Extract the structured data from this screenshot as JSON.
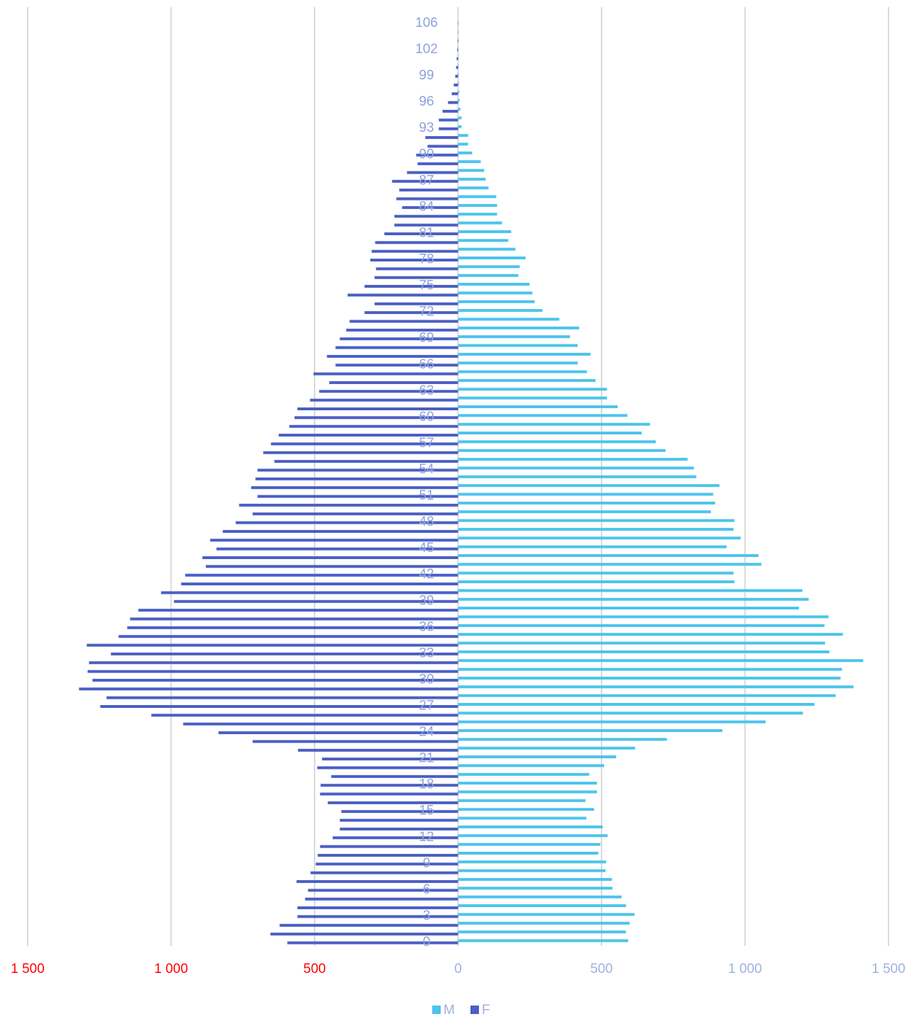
{
  "chart_data": {
    "type": "population-pyramid",
    "categories": [
      "0",
      null,
      null,
      "3",
      null,
      null,
      "6",
      null,
      null,
      "9",
      null,
      null,
      "12",
      null,
      null,
      "15",
      null,
      null,
      "18",
      null,
      null,
      "21",
      null,
      null,
      "24",
      null,
      null,
      "27",
      null,
      null,
      "30",
      null,
      null,
      "33",
      null,
      null,
      "36",
      null,
      null,
      "39",
      null,
      null,
      "42",
      null,
      null,
      "45",
      null,
      null,
      "48",
      null,
      null,
      "51",
      null,
      null,
      "54",
      null,
      null,
      "57",
      null,
      null,
      "60",
      null,
      null,
      "63",
      null,
      null,
      "66",
      null,
      null,
      "69",
      null,
      null,
      "72",
      null,
      null,
      "75",
      null,
      null,
      "78",
      null,
      null,
      "81",
      null,
      null,
      "84",
      null,
      null,
      "87",
      null,
      null,
      "90",
      null,
      null,
      "93",
      null,
      null,
      "96",
      null,
      null,
      "99",
      null,
      null,
      "102",
      null,
      null,
      "106"
    ],
    "series": [
      {
        "name": "M",
        "color": "#4cc4ea",
        "values": [
          593,
          585,
          598,
          615,
          585,
          570,
          538,
          536,
          514,
          516,
          489,
          496,
          521,
          504,
          447,
          474,
          444,
          484,
          484,
          457,
          509,
          551,
          617,
          728,
          921,
          1072,
          1202,
          1242,
          1316,
          1378,
          1333,
          1338,
          1412,
          1294,
          1279,
          1341,
          1277,
          1291,
          1188,
          1222,
          1200,
          963,
          960,
          1057,
          1047,
          936,
          985,
          960,
          963,
          881,
          896,
          889,
          911,
          830,
          822,
          800,
          723,
          689,
          640,
          669,
          590,
          556,
          519,
          519,
          479,
          449,
          417,
          462,
          417,
          390,
          422,
          353,
          294,
          267,
          259,
          249,
          210,
          215,
          235,
          200,
          175,
          185,
          153,
          136,
          136,
          133,
          106,
          96,
          91,
          79,
          49,
          35,
          35,
          12,
          12,
          8,
          5,
          4,
          3,
          2,
          2,
          1,
          1,
          1,
          0.5,
          0.5
        ]
      },
      {
        "name": "F",
        "color": "#4a5fc3",
        "values": [
          595,
          654,
          622,
          560,
          560,
          533,
          523,
          563,
          514,
          496,
          489,
          481,
          437,
          412,
          412,
          407,
          454,
          481,
          479,
          442,
          491,
          474,
          558,
          716,
          835,
          958,
          1069,
          1247,
          1225,
          1321,
          1274,
          1291,
          1286,
          1210,
          1294,
          1183,
          1153,
          1143,
          1114,
          990,
          1035,
          965,
          951,
          879,
          891,
          842,
          864,
          820,
          775,
          716,
          763,
          699,
          721,
          706,
          699,
          640,
          679,
          652,
          625,
          588,
          570,
          560,
          516,
          484,
          449,
          504,
          427,
          457,
          427,
          412,
          390,
          378,
          326,
          291,
          385,
          326,
          291,
          286,
          306,
          301,
          289,
          257,
          222,
          222,
          195,
          215,
          205,
          230,
          178,
          141,
          146,
          106,
          114,
          67,
          67,
          54,
          35,
          22,
          15,
          10,
          7,
          5,
          3,
          2,
          1,
          1
        ]
      }
    ],
    "xlim": [
      -1500,
      1500
    ],
    "xticks": [
      {
        "value": -1500,
        "label": "1 500"
      },
      {
        "value": -1000,
        "label": "1 000"
      },
      {
        "value": -500,
        "label": "500"
      },
      0,
      500,
      {
        "value": 1000,
        "label": "1 000"
      },
      {
        "value": 1500,
        "label": "1 500"
      }
    ],
    "grid": true,
    "legend": "bottom"
  }
}
